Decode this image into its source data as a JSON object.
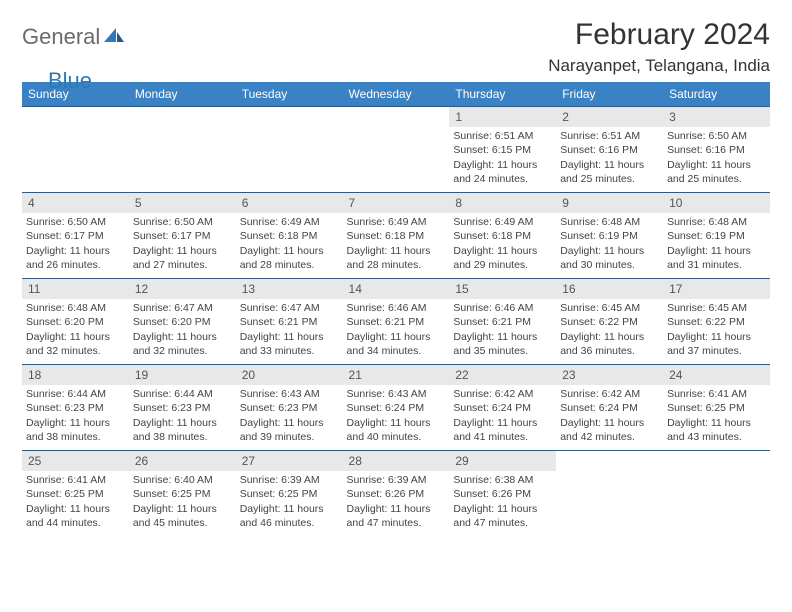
{
  "brand": {
    "part1": "General",
    "part2": "Blue"
  },
  "title": "February 2024",
  "location": "Narayanpet, Telangana, India",
  "colors": {
    "header_bg": "#3a82c4",
    "header_text": "#ffffff",
    "daynum_bg": "#e8e8e8",
    "row_border": "#2f5a84",
    "brand_gray": "#6b6b6b",
    "brand_blue": "#2f79b9"
  },
  "weekdays": [
    "Sunday",
    "Monday",
    "Tuesday",
    "Wednesday",
    "Thursday",
    "Friday",
    "Saturday"
  ],
  "layout": {
    "rows": 5,
    "cols": 7,
    "first_weekday_index": 4,
    "days_in_month": 29
  },
  "days": [
    {
      "n": 1,
      "sunrise": "6:51 AM",
      "sunset": "6:15 PM",
      "daylight": "11 hours and 24 minutes."
    },
    {
      "n": 2,
      "sunrise": "6:51 AM",
      "sunset": "6:16 PM",
      "daylight": "11 hours and 25 minutes."
    },
    {
      "n": 3,
      "sunrise": "6:50 AM",
      "sunset": "6:16 PM",
      "daylight": "11 hours and 25 minutes."
    },
    {
      "n": 4,
      "sunrise": "6:50 AM",
      "sunset": "6:17 PM",
      "daylight": "11 hours and 26 minutes."
    },
    {
      "n": 5,
      "sunrise": "6:50 AM",
      "sunset": "6:17 PM",
      "daylight": "11 hours and 27 minutes."
    },
    {
      "n": 6,
      "sunrise": "6:49 AM",
      "sunset": "6:18 PM",
      "daylight": "11 hours and 28 minutes."
    },
    {
      "n": 7,
      "sunrise": "6:49 AM",
      "sunset": "6:18 PM",
      "daylight": "11 hours and 28 minutes."
    },
    {
      "n": 8,
      "sunrise": "6:49 AM",
      "sunset": "6:18 PM",
      "daylight": "11 hours and 29 minutes."
    },
    {
      "n": 9,
      "sunrise": "6:48 AM",
      "sunset": "6:19 PM",
      "daylight": "11 hours and 30 minutes."
    },
    {
      "n": 10,
      "sunrise": "6:48 AM",
      "sunset": "6:19 PM",
      "daylight": "11 hours and 31 minutes."
    },
    {
      "n": 11,
      "sunrise": "6:48 AM",
      "sunset": "6:20 PM",
      "daylight": "11 hours and 32 minutes."
    },
    {
      "n": 12,
      "sunrise": "6:47 AM",
      "sunset": "6:20 PM",
      "daylight": "11 hours and 32 minutes."
    },
    {
      "n": 13,
      "sunrise": "6:47 AM",
      "sunset": "6:21 PM",
      "daylight": "11 hours and 33 minutes."
    },
    {
      "n": 14,
      "sunrise": "6:46 AM",
      "sunset": "6:21 PM",
      "daylight": "11 hours and 34 minutes."
    },
    {
      "n": 15,
      "sunrise": "6:46 AM",
      "sunset": "6:21 PM",
      "daylight": "11 hours and 35 minutes."
    },
    {
      "n": 16,
      "sunrise": "6:45 AM",
      "sunset": "6:22 PM",
      "daylight": "11 hours and 36 minutes."
    },
    {
      "n": 17,
      "sunrise": "6:45 AM",
      "sunset": "6:22 PM",
      "daylight": "11 hours and 37 minutes."
    },
    {
      "n": 18,
      "sunrise": "6:44 AM",
      "sunset": "6:23 PM",
      "daylight": "11 hours and 38 minutes."
    },
    {
      "n": 19,
      "sunrise": "6:44 AM",
      "sunset": "6:23 PM",
      "daylight": "11 hours and 38 minutes."
    },
    {
      "n": 20,
      "sunrise": "6:43 AM",
      "sunset": "6:23 PM",
      "daylight": "11 hours and 39 minutes."
    },
    {
      "n": 21,
      "sunrise": "6:43 AM",
      "sunset": "6:24 PM",
      "daylight": "11 hours and 40 minutes."
    },
    {
      "n": 22,
      "sunrise": "6:42 AM",
      "sunset": "6:24 PM",
      "daylight": "11 hours and 41 minutes."
    },
    {
      "n": 23,
      "sunrise": "6:42 AM",
      "sunset": "6:24 PM",
      "daylight": "11 hours and 42 minutes."
    },
    {
      "n": 24,
      "sunrise": "6:41 AM",
      "sunset": "6:25 PM",
      "daylight": "11 hours and 43 minutes."
    },
    {
      "n": 25,
      "sunrise": "6:41 AM",
      "sunset": "6:25 PM",
      "daylight": "11 hours and 44 minutes."
    },
    {
      "n": 26,
      "sunrise": "6:40 AM",
      "sunset": "6:25 PM",
      "daylight": "11 hours and 45 minutes."
    },
    {
      "n": 27,
      "sunrise": "6:39 AM",
      "sunset": "6:25 PM",
      "daylight": "11 hours and 46 minutes."
    },
    {
      "n": 28,
      "sunrise": "6:39 AM",
      "sunset": "6:26 PM",
      "daylight": "11 hours and 47 minutes."
    },
    {
      "n": 29,
      "sunrise": "6:38 AM",
      "sunset": "6:26 PM",
      "daylight": "11 hours and 47 minutes."
    }
  ],
  "labels": {
    "sunrise": "Sunrise:",
    "sunset": "Sunset:",
    "daylight": "Daylight:"
  }
}
